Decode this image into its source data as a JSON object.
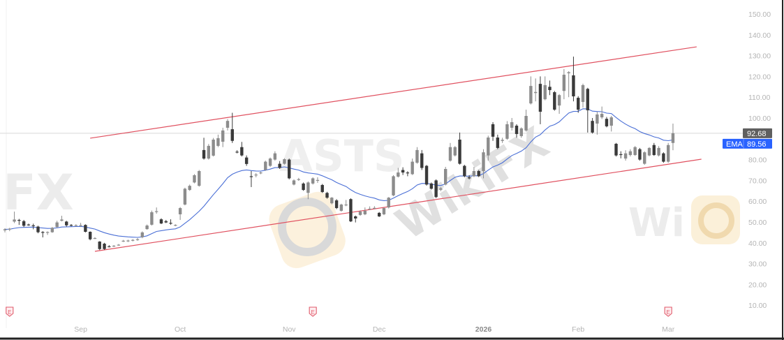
{
  "chart_data": {
    "type": "candlestick",
    "symbol_watermark": "ASTS",
    "brand_watermark": "WikiFX",
    "colors": {
      "up": "#8c8c8c",
      "down": "#3a3a3a",
      "ema": "#4a6fd6",
      "trend_line": "#e0505f",
      "last_price_badge": "#5f5f5f",
      "ema_badge": "#2962ff",
      "earnings_marker": "#e05a6a"
    },
    "y_axis": {
      "range": [
        5,
        155
      ],
      "side": "right",
      "ticks": [
        "150.00",
        "140.00",
        "130.00",
        "120.00",
        "110.00",
        "100.00",
        "80.00",
        "70.00",
        "60.00",
        "50.00",
        "40.00",
        "30.00",
        "20.00",
        "10.00"
      ]
    },
    "x_ticks": [
      {
        "label": "Sep",
        "date": "2025-09-02"
      },
      {
        "label": "Oct",
        "date": "2025-10-01"
      },
      {
        "label": "Nov",
        "date": "2025-11-03"
      },
      {
        "label": "Dec",
        "date": "2025-12-01"
      },
      {
        "label": "2026",
        "date": "2026-01-02",
        "year": true
      },
      {
        "label": "Feb",
        "date": "2026-02-02"
      },
      {
        "label": "Mar",
        "date": "2026-03-02"
      }
    ],
    "last_price": {
      "label": "92.68",
      "value": 92.68
    },
    "indicator": {
      "name": "EMA",
      "period": 20,
      "label": "EMA",
      "value_label": "89.56"
    },
    "earnings_markers": [
      {
        "date": "2025-08-11",
        "label": "E"
      },
      {
        "date": "2025-11-10",
        "label": "E"
      },
      {
        "date": "2026-03-02",
        "label": "E"
      }
    ],
    "trend_lines": [
      {
        "name": "upper-channel",
        "from": [
          "2025-09-04",
          90.3
        ],
        "to": [
          "2026-03-10",
          134.2
        ]
      },
      {
        "name": "lower-channel",
        "from": [
          "2025-09-05",
          35.9
        ],
        "to": [
          "2026-03-11",
          80.2
        ]
      }
    ],
    "candles_columns": [
      "date",
      "open",
      "high",
      "low",
      "close"
    ],
    "candles": [
      [
        "2025-08-08",
        46.0,
        47.0,
        45.0,
        46.5
      ],
      [
        "2025-08-11",
        46.5,
        47.2,
        45.6,
        46.8
      ],
      [
        "2025-08-12",
        50.2,
        55.0,
        49.5,
        51.2
      ],
      [
        "2025-08-13",
        51.0,
        51.5,
        48.6,
        50.6
      ],
      [
        "2025-08-14",
        50.4,
        51.0,
        47.6,
        48.2
      ],
      [
        "2025-08-15",
        48.8,
        49.2,
        48.2,
        48.5
      ],
      [
        "2025-08-18",
        48.4,
        49.2,
        46.5,
        48.0
      ],
      [
        "2025-08-19",
        47.8,
        48.2,
        44.6,
        45.1
      ],
      [
        "2025-08-20",
        45.2,
        45.6,
        42.6,
        45.0
      ],
      [
        "2025-08-21",
        45.0,
        45.5,
        43.8,
        45.2
      ],
      [
        "2025-08-22",
        45.1,
        47.6,
        44.8,
        47.2
      ],
      [
        "2025-08-25",
        47.6,
        50.6,
        47.2,
        49.8
      ],
      [
        "2025-08-26",
        50.6,
        53.0,
        50.3,
        51.2
      ],
      [
        "2025-08-27",
        50.2,
        50.6,
        47.8,
        48.4
      ],
      [
        "2025-08-28",
        48.6,
        49.0,
        47.9,
        48.4
      ],
      [
        "2025-08-29",
        48.4,
        48.9,
        47.8,
        48.5
      ],
      [
        "2025-09-02",
        48.1,
        49.6,
        47.6,
        48.5
      ],
      [
        "2025-09-03",
        48.6,
        48.9,
        45.0,
        45.3
      ],
      [
        "2025-09-04",
        45.3,
        45.5,
        41.2,
        41.7
      ],
      [
        "2025-09-05",
        42.2,
        42.7,
        41.8,
        42.3
      ],
      [
        "2025-09-08",
        40.6,
        40.8,
        36.5,
        37.0
      ],
      [
        "2025-09-09",
        39.6,
        40.0,
        36.6,
        37.0
      ],
      [
        "2025-09-10",
        38.3,
        38.9,
        37.8,
        38.1
      ],
      [
        "2025-09-11",
        38.4,
        38.9,
        38.0,
        38.6
      ],
      [
        "2025-09-12",
        38.9,
        39.4,
        38.6,
        39.1
      ],
      [
        "2025-09-15",
        40.8,
        41.4,
        40.4,
        41.0
      ],
      [
        "2025-09-16",
        40.9,
        41.5,
        40.4,
        41.1
      ],
      [
        "2025-09-17",
        41.2,
        41.8,
        40.7,
        41.4
      ],
      [
        "2025-09-18",
        41.4,
        42.3,
        41.0,
        41.7
      ],
      [
        "2025-09-19",
        42.7,
        45.5,
        42.2,
        45.0
      ],
      [
        "2025-09-22",
        46.6,
        48.8,
        46.3,
        48.3
      ],
      [
        "2025-09-23",
        48.7,
        55.5,
        48.3,
        54.7
      ],
      [
        "2025-09-24",
        54.8,
        57.0,
        54.0,
        55.2
      ],
      [
        "2025-09-25",
        51.3,
        51.8,
        49.0,
        49.3
      ],
      [
        "2025-09-26",
        50.4,
        51.0,
        49.5,
        49.8
      ],
      [
        "2025-09-29",
        49.6,
        51.3,
        48.7,
        49.3
      ],
      [
        "2025-09-30",
        48.5,
        48.9,
        48.0,
        48.6
      ],
      [
        "2025-10-01",
        53.7,
        57.2,
        51.0,
        56.7
      ],
      [
        "2025-10-02",
        58.4,
        66.5,
        58.0,
        66.0
      ],
      [
        "2025-10-03",
        65.4,
        68.0,
        65.0,
        67.4
      ],
      [
        "2025-10-06",
        69.0,
        73.0,
        68.6,
        72.5
      ],
      [
        "2025-10-07",
        67.4,
        75.0,
        67.0,
        74.5
      ],
      [
        "2025-10-08",
        84.6,
        90.5,
        80.0,
        80.5
      ],
      [
        "2025-10-09",
        80.5,
        87.5,
        80.0,
        86.6
      ],
      [
        "2025-10-10",
        81.9,
        90.4,
        81.5,
        89.6
      ],
      [
        "2025-10-13",
        86.6,
        92.0,
        86.0,
        90.3
      ],
      [
        "2025-10-14",
        88.6,
        95.3,
        86.0,
        94.0
      ],
      [
        "2025-10-15",
        95.3,
        99.5,
        94.0,
        98.6
      ],
      [
        "2025-10-16",
        94.6,
        102.5,
        88.0,
        89.0
      ],
      [
        "2025-10-17",
        83.8,
        84.5,
        83.0,
        83.5
      ],
      [
        "2025-10-20",
        86.0,
        88.5,
        81.5,
        82.0
      ],
      [
        "2025-10-21",
        81.0,
        82.0,
        77.0,
        77.9
      ],
      [
        "2025-10-22",
        72.0,
        74.5,
        66.8,
        71.6
      ],
      [
        "2025-10-23",
        72.5,
        73.5,
        71.5,
        72.8
      ],
      [
        "2025-10-24",
        73.6,
        74.2,
        73.0,
        73.8
      ],
      [
        "2025-10-27",
        75.0,
        79.5,
        74.6,
        79.0
      ],
      [
        "2025-10-28",
        77.0,
        81.0,
        76.5,
        80.5
      ],
      [
        "2025-10-29",
        80.0,
        84.0,
        79.5,
        83.0
      ],
      [
        "2025-10-30",
        78.0,
        79.3,
        75.5,
        76.0
      ],
      [
        "2025-10-31",
        78.0,
        80.6,
        77.6,
        80.2
      ],
      [
        "2025-11-03",
        80.0,
        80.5,
        70.5,
        71.0
      ],
      [
        "2025-11-04",
        68.0,
        70.5,
        67.6,
        70.0
      ],
      [
        "2025-11-05",
        70.2,
        71.2,
        69.8,
        70.6
      ],
      [
        "2025-11-06",
        68.5,
        69.0,
        65.0,
        65.4
      ],
      [
        "2025-11-07",
        64.0,
        69.5,
        61.0,
        69.0
      ],
      [
        "2025-11-10",
        68.5,
        71.5,
        68.0,
        71.0
      ],
      [
        "2025-11-11",
        70.0,
        71.5,
        68.8,
        70.2
      ],
      [
        "2025-11-12",
        67.8,
        68.3,
        64.0,
        64.4
      ],
      [
        "2025-11-13",
        64.0,
        64.5,
        61.2,
        61.7
      ],
      [
        "2025-11-14",
        59.0,
        62.0,
        58.5,
        61.7
      ],
      [
        "2025-11-17",
        60.4,
        61.0,
        56.2,
        56.7
      ],
      [
        "2025-11-18",
        55.4,
        58.8,
        55.0,
        58.4
      ],
      [
        "2025-11-19",
        58.2,
        60.6,
        57.6,
        58.4
      ],
      [
        "2025-11-20",
        61.0,
        61.4,
        50.0,
        50.3
      ],
      [
        "2025-11-21",
        52.7,
        53.1,
        49.8,
        51.7
      ],
      [
        "2025-11-24",
        53.4,
        55.6,
        53.0,
        55.0
      ],
      [
        "2025-11-25",
        53.7,
        57.0,
        53.3,
        55.4
      ],
      [
        "2025-11-26",
        56.2,
        57.5,
        55.8,
        56.4
      ],
      [
        "2025-11-28",
        56.5,
        57.6,
        56.2,
        56.8
      ],
      [
        "2025-12-01",
        54.4,
        54.8,
        52.4,
        52.7
      ],
      [
        "2025-12-02",
        53.7,
        57.0,
        53.3,
        56.7
      ],
      [
        "2025-12-03",
        57.0,
        62.0,
        56.5,
        61.7
      ],
      [
        "2025-12-04",
        62.8,
        72.5,
        62.4,
        72.0
      ],
      [
        "2025-12-05",
        71.8,
        76.0,
        71.4,
        73.8
      ],
      [
        "2025-12-08",
        75.0,
        76.3,
        72.6,
        73.8
      ],
      [
        "2025-12-09",
        73.8,
        74.4,
        72.0,
        73.4
      ],
      [
        "2025-12-10",
        73.0,
        80.5,
        72.6,
        79.0
      ],
      [
        "2025-12-11",
        78.5,
        86.0,
        78.0,
        84.6
      ],
      [
        "2025-12-12",
        83.0,
        84.6,
        75.0,
        76.0
      ],
      [
        "2025-12-15",
        77.0,
        77.4,
        67.5,
        68.0
      ],
      [
        "2025-12-16",
        68.5,
        69.0,
        65.6,
        66.0
      ],
      [
        "2025-12-17",
        70.0,
        70.5,
        61.5,
        62.0
      ],
      [
        "2025-12-18",
        65.5,
        66.8,
        64.8,
        66.2
      ],
      [
        "2025-12-19",
        68.0,
        76.5,
        67.6,
        75.5
      ],
      [
        "2025-12-22",
        79.5,
        88.0,
        79.0,
        86.0
      ],
      [
        "2025-12-23",
        82.0,
        86.5,
        81.5,
        86.0
      ],
      [
        "2025-12-24",
        89.6,
        93.0,
        77.6,
        78.0
      ],
      [
        "2025-12-26",
        77.0,
        77.5,
        71.5,
        72.0
      ],
      [
        "2025-12-29",
        71.5,
        72.5,
        70.5,
        71.0
      ],
      [
        "2025-12-30",
        72.0,
        76.5,
        71.6,
        74.5
      ],
      [
        "2025-12-31",
        74.5,
        75.0,
        71.6,
        72.0
      ],
      [
        "2026-01-02",
        74.5,
        85.0,
        71.0,
        83.5
      ],
      [
        "2026-01-05",
        82.0,
        91.5,
        79.5,
        90.6
      ],
      [
        "2026-01-06",
        97.0,
        98.0,
        89.0,
        91.0
      ],
      [
        "2026-01-07",
        90.6,
        92.0,
        85.0,
        85.6
      ],
      [
        "2026-01-08",
        89.0,
        90.5,
        88.0,
        89.5
      ],
      [
        "2026-01-09",
        90.0,
        98.5,
        89.5,
        97.0
      ],
      [
        "2026-01-12",
        95.3,
        100.0,
        94.0,
        98.0
      ],
      [
        "2026-01-13",
        96.3,
        97.0,
        90.5,
        92.3
      ],
      [
        "2026-01-14",
        91.3,
        95.5,
        90.5,
        95.0
      ],
      [
        "2026-01-15",
        94.0,
        104.0,
        93.5,
        101.0
      ],
      [
        "2026-01-16",
        107.0,
        120.0,
        106.5,
        115.4
      ],
      [
        "2026-01-20",
        112.0,
        119.0,
        108.0,
        112.5
      ],
      [
        "2026-01-21",
        116.4,
        120.0,
        97.0,
        103.0
      ],
      [
        "2026-01-22",
        109.0,
        120.0,
        108.5,
        115.8
      ],
      [
        "2026-01-23",
        115.0,
        118.0,
        111.0,
        113.4
      ],
      [
        "2026-01-26",
        112.4,
        113.0,
        103.5,
        104.0
      ],
      [
        "2026-01-27",
        106.0,
        111.5,
        102.0,
        111.0
      ],
      [
        "2026-01-28",
        113.0,
        123.5,
        109.0,
        120.8
      ],
      [
        "2026-01-29",
        121.5,
        122.5,
        110.0,
        122.0
      ],
      [
        "2026-01-30",
        120.5,
        129.5,
        108.0,
        110.4
      ],
      [
        "2026-02-02",
        109.7,
        110.5,
        102.5,
        104.0
      ],
      [
        "2026-02-03",
        107.7,
        116.5,
        105.0,
        115.8
      ],
      [
        "2026-02-04",
        114.0,
        114.5,
        93.0,
        103.7
      ],
      [
        "2026-02-05",
        98.6,
        100.0,
        92.5,
        93.0
      ],
      [
        "2026-02-06",
        97.3,
        103.0,
        92.0,
        101.7
      ],
      [
        "2026-02-09",
        100.3,
        105.5,
        99.5,
        102.0
      ],
      [
        "2026-02-10",
        99.6,
        100.5,
        95.5,
        96.0
      ],
      [
        "2026-02-11",
        96.3,
        101.0,
        93.5,
        100.3
      ],
      [
        "2026-02-12",
        87.6,
        88.0,
        81.5,
        82.0
      ],
      [
        "2026-02-13",
        82.6,
        84.0,
        80.6,
        82.2
      ],
      [
        "2026-02-17",
        80.5,
        84.5,
        79.5,
        83.0
      ],
      [
        "2026-02-18",
        82.2,
        85.0,
        81.5,
        84.0
      ],
      [
        "2026-02-19",
        82.2,
        86.5,
        81.8,
        86.0
      ],
      [
        "2026-02-20",
        85.0,
        85.6,
        79.5,
        80.0
      ],
      [
        "2026-02-23",
        78.0,
        84.0,
        77.5,
        83.5
      ],
      [
        "2026-02-24",
        82.0,
        86.0,
        81.6,
        85.6
      ],
      [
        "2026-02-25",
        87.0,
        88.0,
        81.8,
        82.2
      ],
      [
        "2026-02-26",
        82.0,
        86.5,
        81.5,
        85.6
      ],
      [
        "2026-02-27",
        83.0,
        83.5,
        78.5,
        79.0
      ],
      [
        "2026-03-02",
        79.0,
        88.0,
        78.5,
        87.0
      ],
      [
        "2026-03-03",
        88.0,
        97.3,
        84.5,
        92.68
      ]
    ]
  }
}
